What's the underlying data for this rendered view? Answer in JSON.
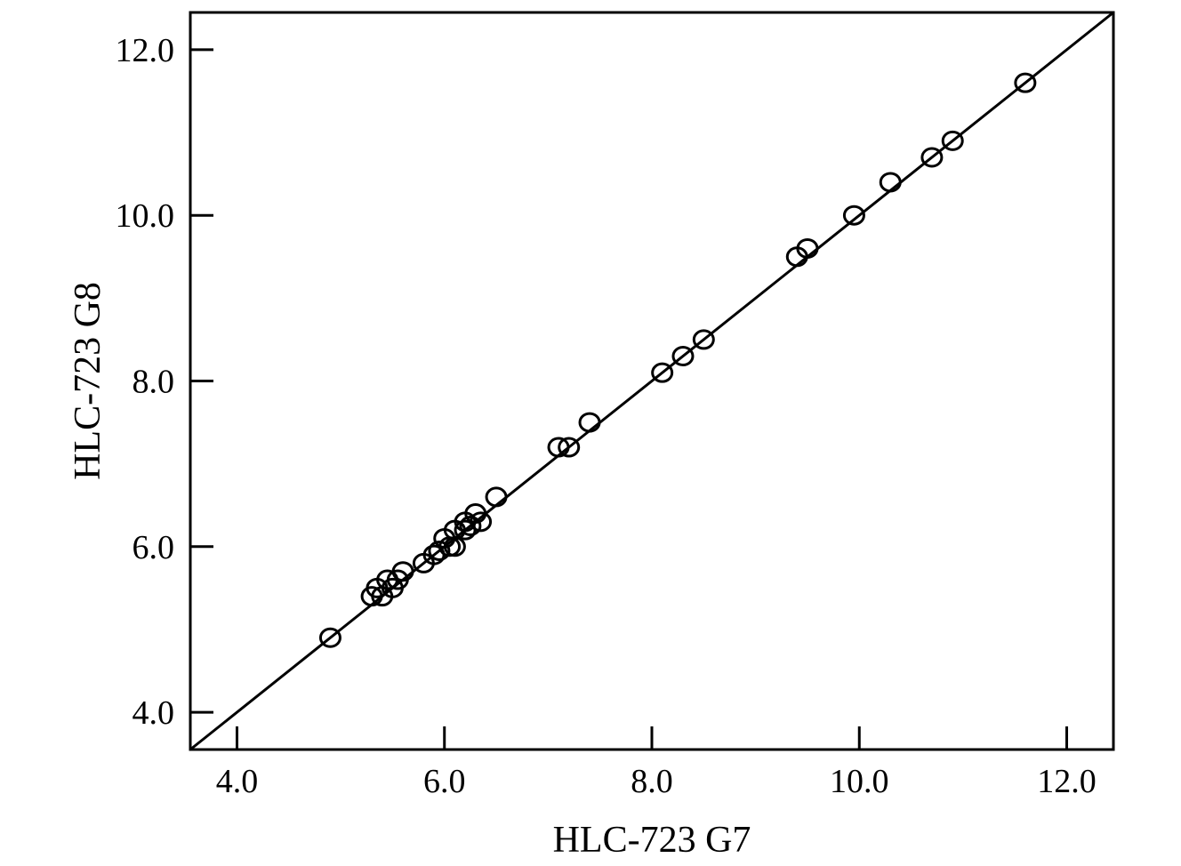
{
  "chart_data": {
    "type": "scatter",
    "xlabel": "HLC-723 G7",
    "ylabel": "HLC-723 G8",
    "xlim": [
      3.55,
      12.45
    ],
    "ylim": [
      3.55,
      12.45
    ],
    "xticks": [
      "4.0",
      "6.0",
      "8.0",
      "10.0",
      "12.0"
    ],
    "yticks": [
      "4.0",
      "6.0",
      "8.0",
      "10.0",
      "12.0"
    ],
    "xtick_values": [
      4,
      6,
      8,
      10,
      12
    ],
    "ytick_values": [
      4,
      6,
      8,
      10,
      12
    ],
    "grid": false,
    "reference_line": {
      "type": "identity",
      "slope": 1,
      "intercept": 0
    },
    "series": [
      {
        "x": [
          4.9,
          5.3,
          5.35,
          5.4,
          5.45,
          5.5,
          5.55,
          5.6,
          5.8,
          5.9,
          5.95,
          6.0,
          6.05,
          6.1,
          6.1,
          6.2,
          6.2,
          6.25,
          6.3,
          6.35,
          6.5,
          7.1,
          7.2,
          7.4,
          8.1,
          8.3,
          8.5,
          9.4,
          9.5,
          9.95,
          10.3,
          10.7,
          10.9,
          11.6
        ],
        "y": [
          4.9,
          5.4,
          5.5,
          5.4,
          5.6,
          5.5,
          5.6,
          5.7,
          5.8,
          5.9,
          5.95,
          6.1,
          6.0,
          6.2,
          6.0,
          6.3,
          6.2,
          6.25,
          6.4,
          6.3,
          6.6,
          7.2,
          7.2,
          7.5,
          8.1,
          8.3,
          8.5,
          9.5,
          9.6,
          10.0,
          10.4,
          10.7,
          10.9,
          11.6
        ]
      }
    ]
  }
}
